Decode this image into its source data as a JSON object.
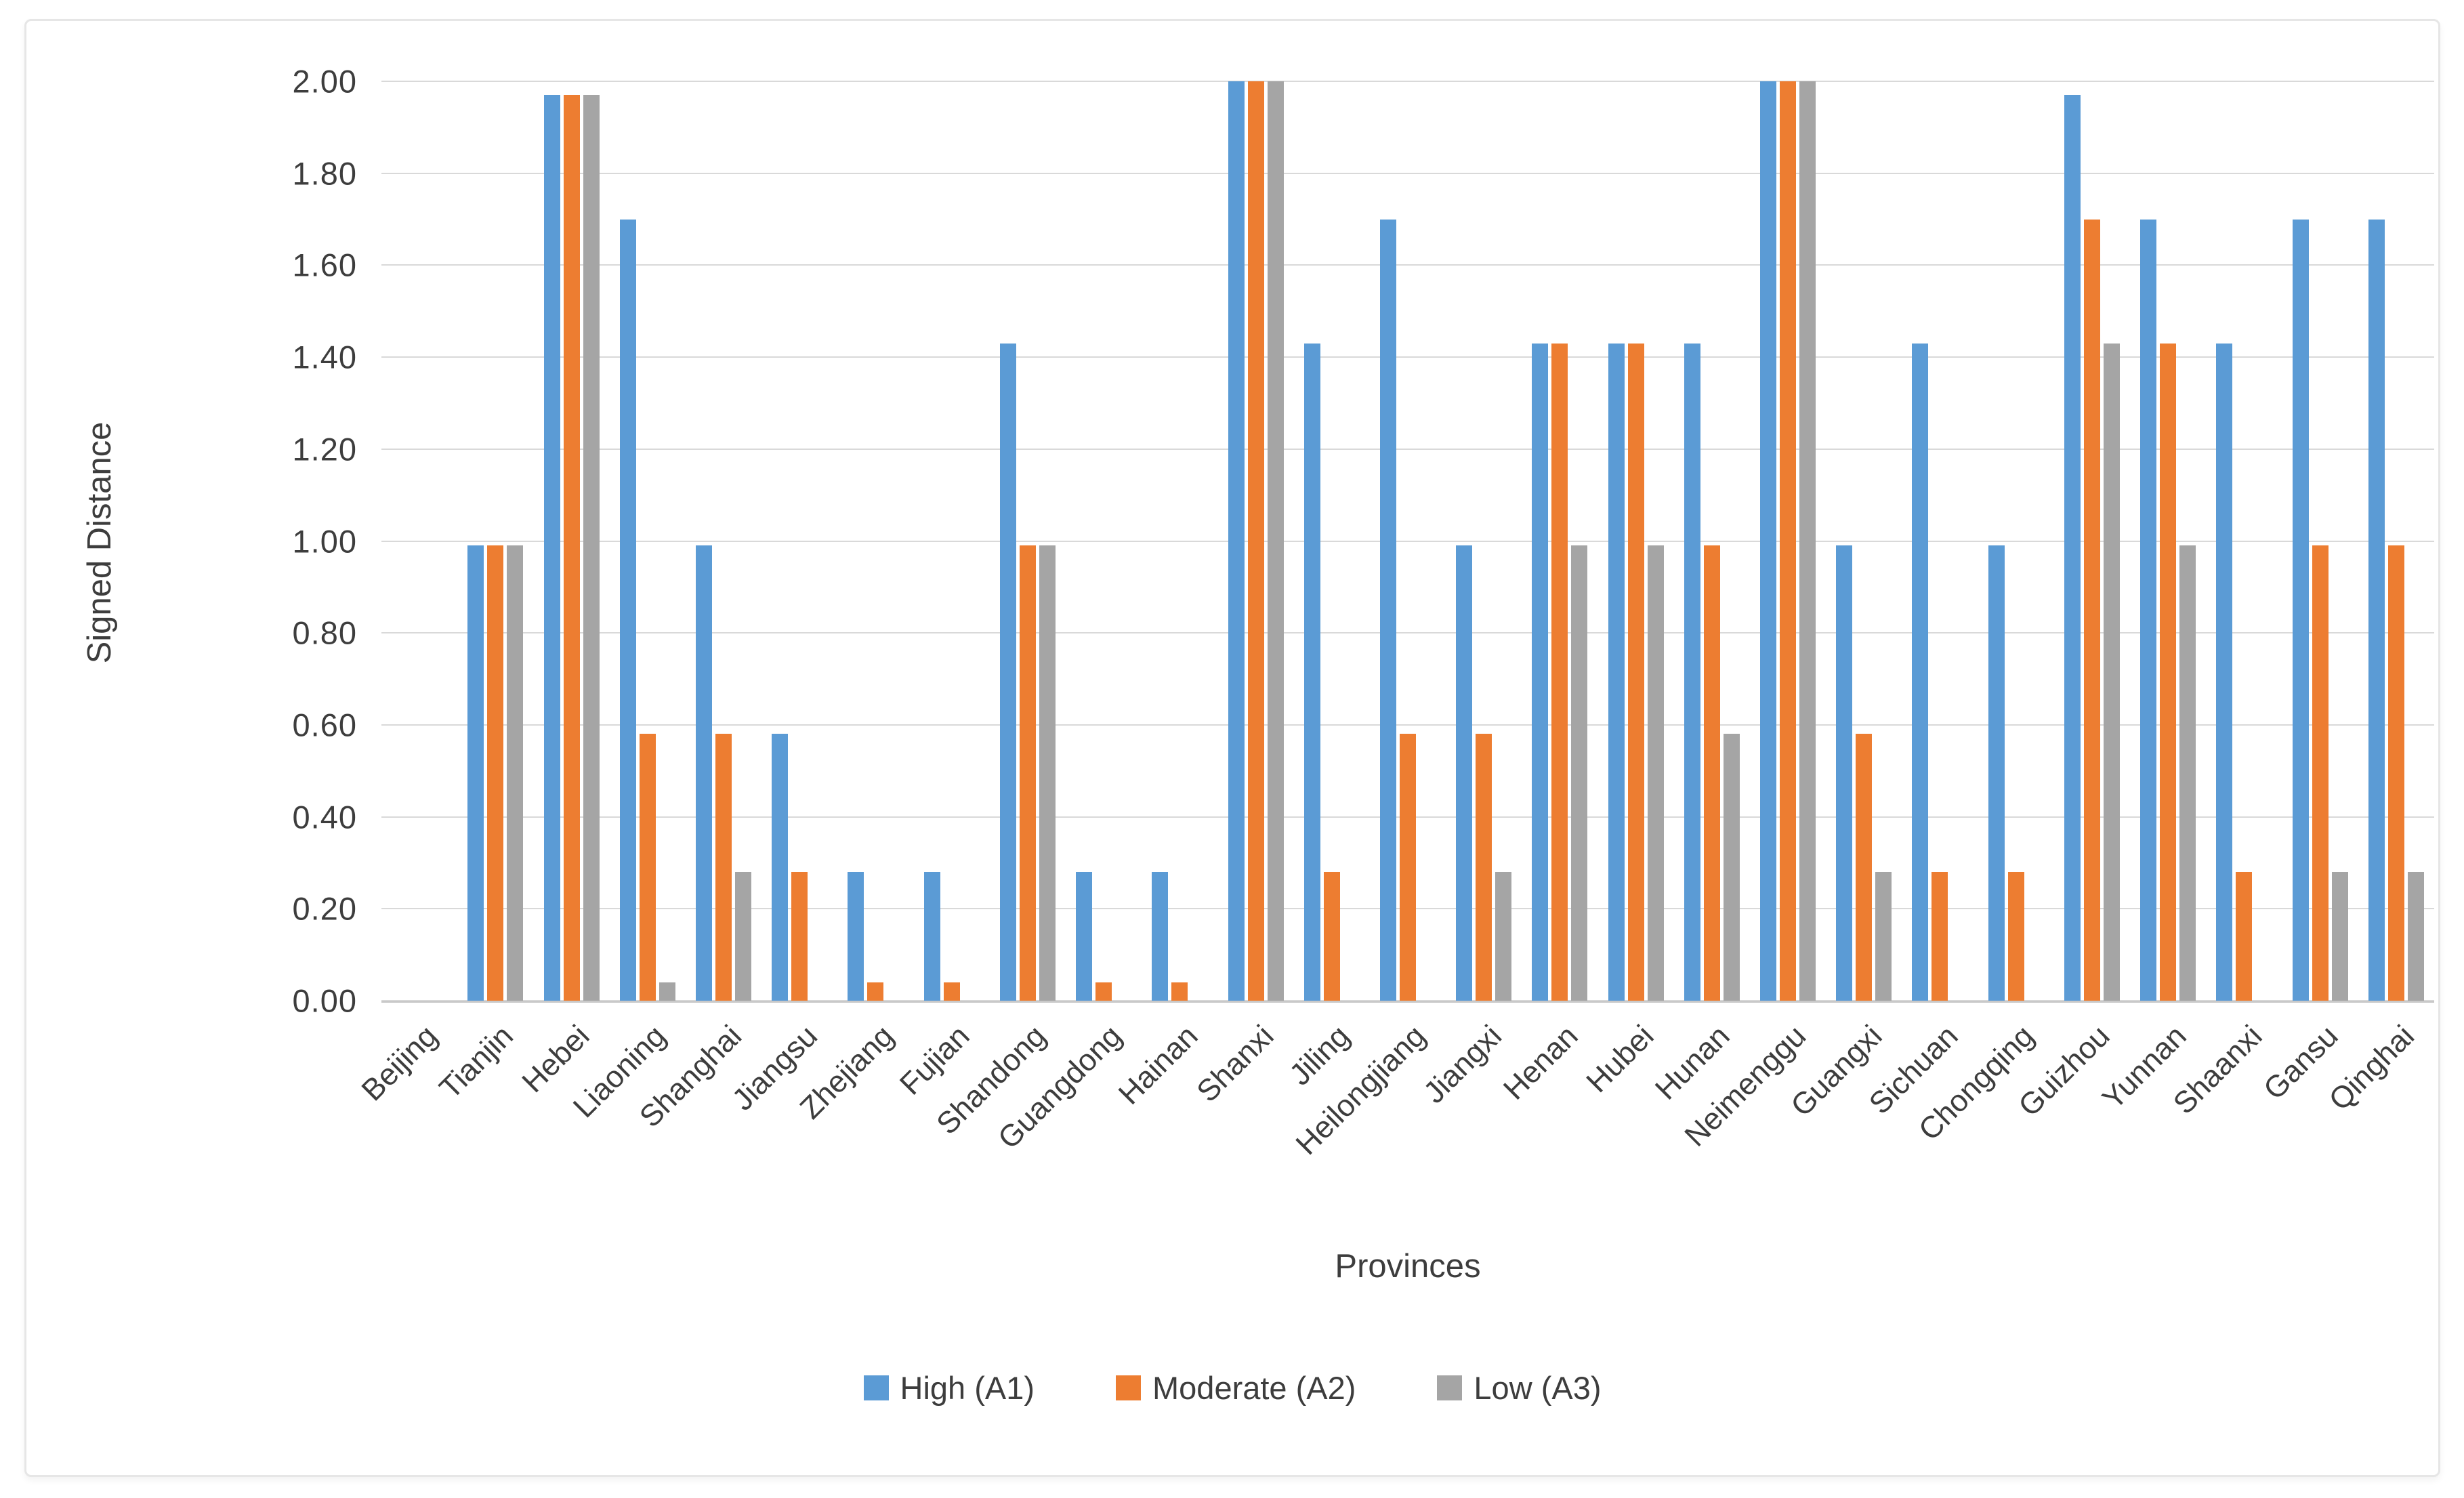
{
  "chart_data": {
    "type": "bar",
    "title": "",
    "xlabel": "Provinces",
    "ylabel": "Signed Distance",
    "ylim": [
      0,
      2.0
    ],
    "ytick_step": 0.2,
    "ytick_labels_top_down": [
      "2.00",
      "1.80",
      "1.60",
      "1.40",
      "1.20",
      "1.00",
      "0.80",
      "0.60",
      "0.40",
      "0.20",
      "0.00"
    ],
    "grid": true,
    "legend_position": "bottom-center",
    "categories": [
      "Beijing",
      "Tianjin",
      "Hebei",
      "Liaoning",
      "Shanghai",
      "Jiangsu",
      "Zhejiang",
      "Fujian",
      "Shandong",
      "Guangdong",
      "Hainan",
      "Shanxi",
      "Jiling",
      "Heilongjiang",
      "Jiangxi",
      "Henan",
      "Hubei",
      "Hunan",
      "Neimenggu",
      "Guangxi",
      "Sichuan",
      "Chongqing",
      "Guizhou",
      "Yunnan",
      "Shaanxi",
      "Gansu",
      "Qinghai"
    ],
    "series": [
      {
        "name": "High (A1)",
        "color": "#5B9BD5",
        "values": [
          0,
          0.99,
          1.97,
          1.7,
          0.99,
          0.58,
          0.28,
          0.28,
          1.43,
          0.28,
          0.28,
          2.0,
          1.43,
          1.7,
          0.99,
          1.43,
          1.43,
          1.43,
          2.0,
          0.99,
          1.43,
          0.99,
          1.97,
          1.7,
          1.43,
          1.7,
          1.7
        ]
      },
      {
        "name": "Moderate (A2)",
        "color": "#ED7D31",
        "values": [
          0,
          0.99,
          1.97,
          0.58,
          0.58,
          0.28,
          0.04,
          0.04,
          0.99,
          0.04,
          0.04,
          2.0,
          0.28,
          0.58,
          0.58,
          1.43,
          1.43,
          0.99,
          2.0,
          0.58,
          0.28,
          0.28,
          1.7,
          1.43,
          0.28,
          0.99,
          0.99
        ]
      },
      {
        "name": "Low (A3)",
        "color": "#A5A5A5",
        "values": [
          0,
          0.99,
          1.97,
          0.04,
          0.28,
          0,
          0,
          0,
          0.99,
          0,
          0,
          2.0,
          0,
          0,
          0.28,
          0.99,
          0.99,
          0.58,
          2.0,
          0.28,
          0,
          0,
          1.43,
          0.99,
          0,
          0.28,
          0.28
        ]
      }
    ]
  },
  "colors": {
    "series_high": "#5B9BD5",
    "series_moderate": "#ED7D31",
    "series_low": "#A5A5A5",
    "gridline": "#d9d9d9",
    "axis_line": "#c9c9c9",
    "text": "#3d3d3d",
    "frame_border": "#e6e6e6",
    "background": "#ffffff"
  }
}
